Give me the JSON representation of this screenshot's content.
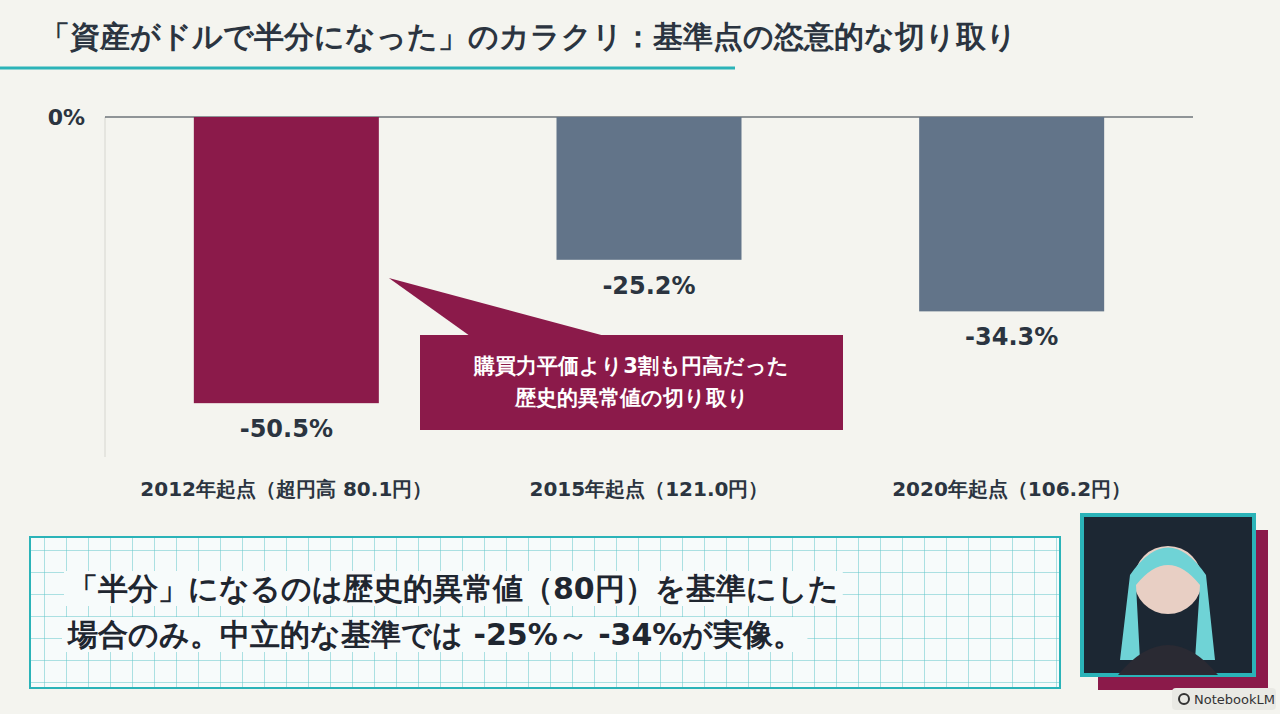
{
  "chart_data": {
    "type": "bar",
    "title": "「資産がドルで半分になった」のカラクリ：基準点の恣意的な切り取り",
    "categories": [
      "2012年起点（超円高 80.1円）",
      "2015年起点（121.0円）",
      "2020年起点（106.2円）"
    ],
    "values": [
      -50.5,
      -25.2,
      -34.3
    ],
    "value_labels": [
      "-50.5%",
      "-25.2%",
      "-34.3%"
    ],
    "colors": [
      "#8b1a4a",
      "#627489",
      "#627489"
    ],
    "ylim": [
      -60,
      0
    ],
    "yticks": [
      {
        "value": 0,
        "label": "0%"
      }
    ],
    "grid": true,
    "data_labels": true,
    "annotation": "購買力平価より3割も円高だった\n歴史的異常値の切り取り",
    "summary": "「半分」になるのは歴史的異常値（80円）を基準にした\n場合のみ。中立的な基準では -25%～ -34%が実像。",
    "badge": "NotebookLM"
  }
}
